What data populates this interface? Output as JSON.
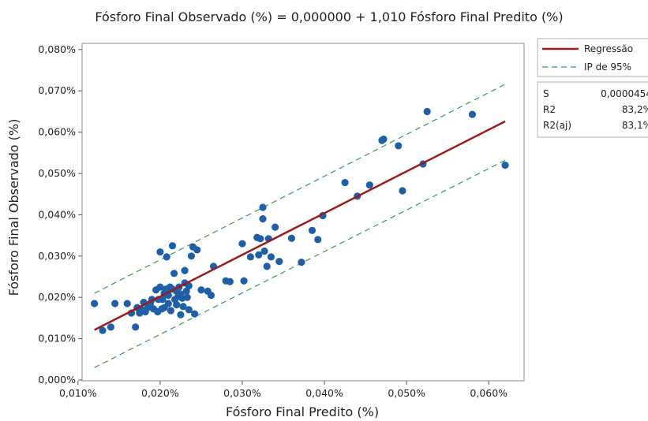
{
  "chart_data": {
    "type": "scatter",
    "title": "Fósforo Final Observado (%) = 0,000000 + 1,010 Fósforo Final Predito (%)",
    "xlabel": "Fósforo Final Predito (%)",
    "ylabel": "Fósforo Final Observado (%)",
    "xlim": [
      0.0105,
      0.0643
    ],
    "ylim": [
      -0.0002,
      0.0815
    ],
    "x_ticks": [
      0.01,
      0.02,
      0.03,
      0.04,
      0.05,
      0.06
    ],
    "x_tick_labels": [
      "0,010%",
      "0,020%",
      "0,030%",
      "0,040%",
      "0,050%",
      "0,060%"
    ],
    "y_ticks": [
      0.0,
      0.01,
      0.02,
      0.03,
      0.04,
      0.05,
      0.06,
      0.07,
      0.08
    ],
    "y_tick_labels": [
      "0,000%",
      "0,010%",
      "0,020%",
      "0,030%",
      "0,040%",
      "0,050%",
      "0,060%",
      "0,070%",
      "0,080%"
    ],
    "grid": false,
    "legend_position": "top-right",
    "colors": {
      "points": "#1f5fa8",
      "regression": "#9b1b1b",
      "interval": "#3a9a4a"
    },
    "regression": {
      "name": "Regressão",
      "intercept": 0.0,
      "slope": 1.01,
      "x_range": [
        0.012,
        0.062
      ]
    },
    "prediction_interval": {
      "name": "IP de 95%",
      "upper": {
        "x": [
          0.012,
          0.062
        ],
        "y": [
          0.021,
          0.0716
        ]
      },
      "lower": {
        "x": [
          0.012,
          0.062
        ],
        "y": [
          0.003,
          0.0532
        ]
      }
    },
    "stats": [
      {
        "label": "S",
        "value": "0,0000454"
      },
      {
        "label": "R2",
        "value": "83,2%"
      },
      {
        "label": "R2(aj)",
        "value": "83,1%"
      }
    ],
    "points": {
      "x": [
        0.012,
        0.013,
        0.014,
        0.0145,
        0.016,
        0.0165,
        0.017,
        0.0172,
        0.0175,
        0.0178,
        0.018,
        0.0182,
        0.0185,
        0.0188,
        0.019,
        0.0192,
        0.0195,
        0.0197,
        0.0198,
        0.02,
        0.02,
        0.0202,
        0.0203,
        0.0205,
        0.0205,
        0.0207,
        0.0208,
        0.021,
        0.021,
        0.0212,
        0.0213,
        0.0215,
        0.0215,
        0.0217,
        0.0218,
        0.022,
        0.022,
        0.0222,
        0.0223,
        0.0225,
        0.0225,
        0.0227,
        0.0228,
        0.023,
        0.023,
        0.0232,
        0.0233,
        0.0235,
        0.0235,
        0.0238,
        0.024,
        0.0242,
        0.0245,
        0.025,
        0.0258,
        0.0262,
        0.0265,
        0.028,
        0.0285,
        0.03,
        0.0302,
        0.031,
        0.0318,
        0.032,
        0.0322,
        0.0325,
        0.0325,
        0.0327,
        0.033,
        0.0332,
        0.0335,
        0.034,
        0.0345,
        0.036,
        0.0372,
        0.0385,
        0.0392,
        0.0398,
        0.0425,
        0.044,
        0.0455,
        0.047,
        0.0472,
        0.049,
        0.0495,
        0.052,
        0.0525,
        0.058,
        0.062
      ],
      "y": [
        0.0185,
        0.012,
        0.0128,
        0.0185,
        0.0185,
        0.0162,
        0.0128,
        0.0175,
        0.0162,
        0.017,
        0.0188,
        0.0165,
        0.0175,
        0.0185,
        0.0195,
        0.0172,
        0.0218,
        0.0165,
        0.0195,
        0.031,
        0.0225,
        0.0172,
        0.0195,
        0.021,
        0.0175,
        0.022,
        0.0298,
        0.0205,
        0.0185,
        0.0225,
        0.0168,
        0.0325,
        0.022,
        0.0258,
        0.0195,
        0.0215,
        0.0182,
        0.0202,
        0.0225,
        0.0208,
        0.0158,
        0.0198,
        0.0178,
        0.0235,
        0.0265,
        0.0215,
        0.02,
        0.0228,
        0.017,
        0.03,
        0.0322,
        0.016,
        0.0315,
        0.0218,
        0.0215,
        0.0205,
        0.0275,
        0.024,
        0.0238,
        0.033,
        0.024,
        0.0298,
        0.0345,
        0.0303,
        0.0342,
        0.039,
        0.0418,
        0.0312,
        0.0275,
        0.0342,
        0.0298,
        0.037,
        0.0287,
        0.0343,
        0.0285,
        0.0362,
        0.034,
        0.0398,
        0.0478,
        0.0445,
        0.0472,
        0.058,
        0.0583,
        0.0567,
        0.0458,
        0.0523,
        0.065,
        0.0643,
        0.052
      ]
    }
  }
}
